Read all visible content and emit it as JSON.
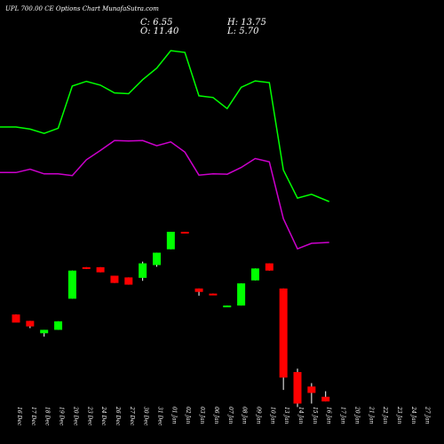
{
  "header": {
    "title": "UPL 700.00 CE Options Chart MunafaSutra.com",
    "c_label": "C: 6.55",
    "o_label": "O: 11.40",
    "h_label": "H: 13.75",
    "l_label": "L: 5.70"
  },
  "colors": {
    "background": "#000000",
    "up": "#00ff00",
    "down": "#ff0000",
    "upper_line": "#00ff00",
    "lower_line": "#cc00cc",
    "wick": "#ffffff"
  },
  "chart_data": {
    "type": "candlestick",
    "x_tick_labels": [
      "16 Dec",
      "17 Dec",
      "18 Dec",
      "19 Dec",
      "20 Dec",
      "23 Dec",
      "24 Dec",
      "26 Dec",
      "27 Dec",
      "30 Dec",
      "31 Dec",
      "01 Jan",
      "02 Jan",
      "03 Jan",
      "06 Jan",
      "07 Jan",
      "08 Jan",
      "09 Jan",
      "10 Jan",
      "13 Jan",
      "14 Jan",
      "15 Jan",
      "16 Jan",
      "17 Jan",
      "20 Jan",
      "21 Jan",
      "22 Jan",
      "23 Jan",
      "24 Jan",
      "27 Jan"
    ],
    "candles": [
      {
        "o": 28.3,
        "h": 28.3,
        "l": 26.7,
        "c": 26.4
      },
      {
        "o": 26.8,
        "h": 26.8,
        "l": 25.1,
        "c": 25.5
      },
      {
        "o": 23.9,
        "h": 24.7,
        "l": 23.1,
        "c": 24.7
      },
      {
        "o": 24.7,
        "h": 26.7,
        "l": 24.7,
        "c": 26.7
      },
      {
        "o": 32.0,
        "h": 38.6,
        "l": 32.0,
        "c": 38.6
      },
      {
        "o": 39.4,
        "h": 39.4,
        "l": 39.0,
        "c": 39.0
      },
      {
        "o": 39.4,
        "h": 39.4,
        "l": 38.2,
        "c": 38.2
      },
      {
        "o": 37.4,
        "h": 37.4,
        "l": 35.7,
        "c": 35.7
      },
      {
        "o": 37.0,
        "h": 37.0,
        "l": 35.3,
        "c": 35.3
      },
      {
        "o": 36.9,
        "h": 40.7,
        "l": 36.2,
        "c": 40.3
      },
      {
        "o": 39.9,
        "h": 42.8,
        "l": 39.5,
        "c": 42.8
      },
      {
        "o": 43.6,
        "h": 47.7,
        "l": 43.6,
        "c": 47.7
      },
      {
        "o": 47.7,
        "h": 47.7,
        "l": 47.3,
        "c": 47.3
      },
      {
        "o": 34.4,
        "h": 34.4,
        "l": 32.7,
        "c": 33.6
      },
      {
        "o": 33.2,
        "h": 33.2,
        "l": 33.0,
        "c": 33.0
      },
      {
        "o": 30.4,
        "h": 30.4,
        "l": 30.0,
        "c": 30.4
      },
      {
        "o": 30.4,
        "h": 35.6,
        "l": 30.4,
        "c": 35.6
      },
      {
        "o": 36.3,
        "h": 39.1,
        "l": 36.3,
        "c": 39.1
      },
      {
        "o": 40.3,
        "h": 40.3,
        "l": 38.6,
        "c": 38.6
      },
      {
        "o": 34.4,
        "h": 34.4,
        "l": 10.6,
        "c": 13.5
      },
      {
        "o": 14.8,
        "h": 15.6,
        "l": 6.6,
        "c": 7.4
      },
      {
        "o": 11.4,
        "h": 12.2,
        "l": 7.4,
        "c": 9.9
      },
      {
        "o": 9.0,
        "h": 10.3,
        "l": 7.9,
        "c": 7.9
      }
    ],
    "upper_band": [
      72.3,
      72.3,
      71.8,
      70.8,
      72.0,
      81.9,
      83.0,
      82.1,
      80.3,
      80.1,
      83.4,
      86.1,
      90.2,
      89.8,
      79.6,
      79.2,
      76.6,
      81.6,
      83.1,
      82.7,
      62.2,
      55.6,
      56.5,
      54.8
    ],
    "lower_band": [
      61.6,
      61.6,
      62.4,
      61.3,
      61.3,
      60.9,
      64.6,
      66.8,
      69.1,
      69.0,
      69.1,
      67.9,
      68.8,
      66.4,
      61.0,
      61.3,
      61.2,
      62.8,
      64.9,
      64.1,
      50.8,
      43.7,
      45.0,
      45.2
    ],
    "ylim": [
      0,
      100
    ],
    "grid": false
  }
}
